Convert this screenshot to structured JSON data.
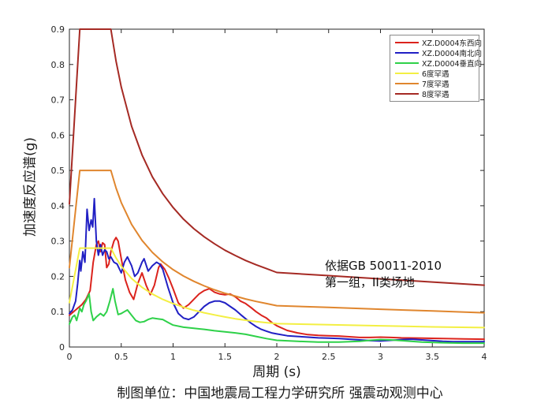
{
  "chart_data": {
    "type": "line",
    "title": "",
    "xlabel": "周期 (s)",
    "ylabel": "加速度反应谱(g)",
    "caption": "制图单位：中国地震局工程力学研究所 强震动观测中心",
    "xlim": [
      0,
      4
    ],
    "ylim": [
      0,
      0.9
    ],
    "xticks": [
      0,
      0.5,
      1,
      1.5,
      2,
      2.5,
      3,
      3.5,
      4
    ],
    "xtick_labels": [
      "0",
      "0.5",
      "1",
      "1.5",
      "2",
      "2.5",
      "3",
      "3.5",
      "4"
    ],
    "yticks": [
      0,
      0.1,
      0.2,
      0.3,
      0.4,
      0.5,
      0.6,
      0.7,
      0.8,
      0.9
    ],
    "ytick_labels": [
      "0",
      "0.1",
      "0.2",
      "0.3",
      "0.4",
      "0.5",
      "0.6",
      "0.7",
      "0.8",
      "0.9"
    ],
    "axis_color": "#262626",
    "grid": false,
    "legend_position": "top-right",
    "annotation": {
      "line1": "依据GB 50011-2010",
      "line2": "第一组，II类场地"
    },
    "series": [
      {
        "id": "ew",
        "name": "XZ.D0004东西向",
        "color": "#db231d",
        "points": [
          [
            0,
            0.09
          ],
          [
            0.04,
            0.1
          ],
          [
            0.08,
            0.11
          ],
          [
            0.12,
            0.12
          ],
          [
            0.16,
            0.135
          ],
          [
            0.2,
            0.16
          ],
          [
            0.23,
            0.24
          ],
          [
            0.26,
            0.29
          ],
          [
            0.28,
            0.3
          ],
          [
            0.3,
            0.27
          ],
          [
            0.32,
            0.295
          ],
          [
            0.34,
            0.29
          ],
          [
            0.36,
            0.225
          ],
          [
            0.38,
            0.235
          ],
          [
            0.4,
            0.27
          ],
          [
            0.43,
            0.3
          ],
          [
            0.45,
            0.31
          ],
          [
            0.47,
            0.3
          ],
          [
            0.5,
            0.25
          ],
          [
            0.54,
            0.19
          ],
          [
            0.58,
            0.155
          ],
          [
            0.62,
            0.135
          ],
          [
            0.66,
            0.18
          ],
          [
            0.7,
            0.21
          ],
          [
            0.74,
            0.175
          ],
          [
            0.78,
            0.148
          ],
          [
            0.82,
            0.175
          ],
          [
            0.86,
            0.225
          ],
          [
            0.88,
            0.235
          ],
          [
            0.92,
            0.22
          ],
          [
            0.96,
            0.195
          ],
          [
            1,
            0.165
          ],
          [
            1.05,
            0.125
          ],
          [
            1.1,
            0.11
          ],
          [
            1.15,
            0.12
          ],
          [
            1.2,
            0.135
          ],
          [
            1.25,
            0.15
          ],
          [
            1.3,
            0.16
          ],
          [
            1.35,
            0.165
          ],
          [
            1.4,
            0.155
          ],
          [
            1.45,
            0.15
          ],
          [
            1.5,
            0.148
          ],
          [
            1.55,
            0.15
          ],
          [
            1.6,
            0.142
          ],
          [
            1.65,
            0.13
          ],
          [
            1.7,
            0.123
          ],
          [
            1.75,
            0.112
          ],
          [
            1.8,
            0.1
          ],
          [
            1.85,
            0.09
          ],
          [
            1.9,
            0.082
          ],
          [
            1.95,
            0.07
          ],
          [
            2,
            0.06
          ],
          [
            2.1,
            0.047
          ],
          [
            2.2,
            0.04
          ],
          [
            2.3,
            0.035
          ],
          [
            2.4,
            0.033
          ],
          [
            2.5,
            0.032
          ],
          [
            2.6,
            0.031
          ],
          [
            2.7,
            0.029
          ],
          [
            2.8,
            0.027
          ],
          [
            2.9,
            0.027
          ],
          [
            3,
            0.028
          ],
          [
            3.1,
            0.027
          ],
          [
            3.2,
            0.026
          ],
          [
            3.4,
            0.025
          ],
          [
            3.6,
            0.024
          ],
          [
            3.8,
            0.023
          ],
          [
            4,
            0.022
          ]
        ]
      },
      {
        "id": "ns",
        "name": "XZ.D0004南北向",
        "color": "#2120c4",
        "points": [
          [
            0,
            0.095
          ],
          [
            0.03,
            0.105
          ],
          [
            0.06,
            0.13
          ],
          [
            0.08,
            0.18
          ],
          [
            0.1,
            0.245
          ],
          [
            0.11,
            0.215
          ],
          [
            0.13,
            0.27
          ],
          [
            0.15,
            0.24
          ],
          [
            0.17,
            0.39
          ],
          [
            0.19,
            0.33
          ],
          [
            0.21,
            0.36
          ],
          [
            0.225,
            0.34
          ],
          [
            0.24,
            0.42
          ],
          [
            0.26,
            0.3
          ],
          [
            0.28,
            0.26
          ],
          [
            0.3,
            0.29
          ],
          [
            0.32,
            0.26
          ],
          [
            0.34,
            0.275
          ],
          [
            0.36,
            0.27
          ],
          [
            0.38,
            0.25
          ],
          [
            0.4,
            0.255
          ],
          [
            0.43,
            0.24
          ],
          [
            0.46,
            0.235
          ],
          [
            0.5,
            0.21
          ],
          [
            0.53,
            0.24
          ],
          [
            0.56,
            0.255
          ],
          [
            0.6,
            0.23
          ],
          [
            0.63,
            0.2
          ],
          [
            0.66,
            0.21
          ],
          [
            0.7,
            0.24
          ],
          [
            0.72,
            0.25
          ],
          [
            0.76,
            0.215
          ],
          [
            0.8,
            0.23
          ],
          [
            0.84,
            0.24
          ],
          [
            0.87,
            0.235
          ],
          [
            0.9,
            0.22
          ],
          [
            0.95,
            0.17
          ],
          [
            1,
            0.125
          ],
          [
            1.05,
            0.095
          ],
          [
            1.1,
            0.082
          ],
          [
            1.15,
            0.078
          ],
          [
            1.2,
            0.085
          ],
          [
            1.25,
            0.1
          ],
          [
            1.3,
            0.115
          ],
          [
            1.35,
            0.125
          ],
          [
            1.4,
            0.13
          ],
          [
            1.45,
            0.13
          ],
          [
            1.5,
            0.125
          ],
          [
            1.55,
            0.115
          ],
          [
            1.6,
            0.105
          ],
          [
            1.65,
            0.092
          ],
          [
            1.7,
            0.08
          ],
          [
            1.75,
            0.068
          ],
          [
            1.8,
            0.058
          ],
          [
            1.85,
            0.05
          ],
          [
            1.9,
            0.045
          ],
          [
            1.95,
            0.04
          ],
          [
            2,
            0.037
          ],
          [
            2.1,
            0.032
          ],
          [
            2.2,
            0.03
          ],
          [
            2.3,
            0.028
          ],
          [
            2.4,
            0.026
          ],
          [
            2.5,
            0.025
          ],
          [
            2.6,
            0.024
          ],
          [
            2.7,
            0.022
          ],
          [
            2.8,
            0.02
          ],
          [
            2.9,
            0.018
          ],
          [
            3,
            0.017
          ],
          [
            3.1,
            0.019
          ],
          [
            3.2,
            0.021
          ],
          [
            3.3,
            0.022
          ],
          [
            3.4,
            0.02
          ],
          [
            3.5,
            0.018
          ],
          [
            3.6,
            0.016
          ],
          [
            3.7,
            0.015
          ],
          [
            3.8,
            0.015
          ],
          [
            3.9,
            0.015
          ],
          [
            4,
            0.015
          ]
        ]
      },
      {
        "id": "ud",
        "name": "XZ.D0004垂直向",
        "color": "#2ed149",
        "points": [
          [
            0,
            0.065
          ],
          [
            0.03,
            0.085
          ],
          [
            0.05,
            0.09
          ],
          [
            0.07,
            0.075
          ],
          [
            0.1,
            0.11
          ],
          [
            0.12,
            0.1
          ],
          [
            0.14,
            0.12
          ],
          [
            0.16,
            0.13
          ],
          [
            0.19,
            0.15
          ],
          [
            0.21,
            0.1
          ],
          [
            0.23,
            0.075
          ],
          [
            0.26,
            0.085
          ],
          [
            0.28,
            0.09
          ],
          [
            0.3,
            0.095
          ],
          [
            0.33,
            0.088
          ],
          [
            0.36,
            0.1
          ],
          [
            0.39,
            0.13
          ],
          [
            0.42,
            0.165
          ],
          [
            0.44,
            0.13
          ],
          [
            0.47,
            0.092
          ],
          [
            0.5,
            0.095
          ],
          [
            0.53,
            0.1
          ],
          [
            0.56,
            0.105
          ],
          [
            0.6,
            0.09
          ],
          [
            0.64,
            0.075
          ],
          [
            0.68,
            0.07
          ],
          [
            0.72,
            0.072
          ],
          [
            0.76,
            0.078
          ],
          [
            0.8,
            0.082
          ],
          [
            0.85,
            0.08
          ],
          [
            0.9,
            0.078
          ],
          [
            0.95,
            0.07
          ],
          [
            1,
            0.062
          ],
          [
            1.1,
            0.056
          ],
          [
            1.2,
            0.053
          ],
          [
            1.3,
            0.05
          ],
          [
            1.4,
            0.046
          ],
          [
            1.5,
            0.043
          ],
          [
            1.6,
            0.04
          ],
          [
            1.7,
            0.036
          ],
          [
            1.8,
            0.03
          ],
          [
            1.9,
            0.024
          ],
          [
            2,
            0.019
          ],
          [
            2.2,
            0.016
          ],
          [
            2.4,
            0.014
          ],
          [
            2.6,
            0.014
          ],
          [
            2.8,
            0.016
          ],
          [
            2.9,
            0.019
          ],
          [
            3,
            0.021
          ],
          [
            3.1,
            0.02
          ],
          [
            3.2,
            0.018
          ],
          [
            3.4,
            0.014
          ],
          [
            3.6,
            0.012
          ],
          [
            3.8,
            0.011
          ],
          [
            4,
            0.011
          ]
        ]
      },
      {
        "id": "rare6",
        "name": "6度罕遇",
        "color": "#f3ef43",
        "points": [
          [
            0,
            0.126
          ],
          [
            0.1,
            0.28
          ],
          [
            0.4,
            0.28
          ],
          [
            0.45,
            0.252
          ],
          [
            0.5,
            0.229
          ],
          [
            0.6,
            0.194
          ],
          [
            0.7,
            0.169
          ],
          [
            0.8,
            0.15
          ],
          [
            0.9,
            0.135
          ],
          [
            1,
            0.123
          ],
          [
            1.1,
            0.113
          ],
          [
            1.2,
            0.104
          ],
          [
            1.3,
            0.097
          ],
          [
            1.4,
            0.091
          ],
          [
            1.5,
            0.085
          ],
          [
            1.6,
            0.08
          ],
          [
            1.7,
            0.076
          ],
          [
            1.8,
            0.072
          ],
          [
            1.9,
            0.069
          ],
          [
            2,
            0.066
          ],
          [
            2.5,
            0.063
          ],
          [
            3,
            0.06
          ],
          [
            3.5,
            0.057
          ],
          [
            4,
            0.055
          ]
        ]
      },
      {
        "id": "rare7",
        "name": "7度罕遇",
        "color": "#e0862e",
        "points": [
          [
            0,
            0.225
          ],
          [
            0.1,
            0.5
          ],
          [
            0.4,
            0.5
          ],
          [
            0.45,
            0.45
          ],
          [
            0.5,
            0.409
          ],
          [
            0.6,
            0.347
          ],
          [
            0.7,
            0.302
          ],
          [
            0.8,
            0.268
          ],
          [
            0.9,
            0.241
          ],
          [
            1,
            0.219
          ],
          [
            1.1,
            0.201
          ],
          [
            1.2,
            0.186
          ],
          [
            1.3,
            0.173
          ],
          [
            1.4,
            0.162
          ],
          [
            1.5,
            0.152
          ],
          [
            1.6,
            0.144
          ],
          [
            1.7,
            0.136
          ],
          [
            1.8,
            0.129
          ],
          [
            1.9,
            0.123
          ],
          [
            2,
            0.117
          ],
          [
            2.5,
            0.112
          ],
          [
            3,
            0.107
          ],
          [
            3.5,
            0.102
          ],
          [
            4,
            0.097
          ]
        ]
      },
      {
        "id": "rare8",
        "name": "8度罕遇",
        "color": "#a52a24",
        "points": [
          [
            0,
            0.405
          ],
          [
            0.1,
            0.9
          ],
          [
            0.4,
            0.9
          ],
          [
            0.45,
            0.809
          ],
          [
            0.5,
            0.736
          ],
          [
            0.6,
            0.625
          ],
          [
            0.7,
            0.544
          ],
          [
            0.8,
            0.482
          ],
          [
            0.9,
            0.434
          ],
          [
            1,
            0.395
          ],
          [
            1.1,
            0.362
          ],
          [
            1.2,
            0.335
          ],
          [
            1.3,
            0.312
          ],
          [
            1.4,
            0.292
          ],
          [
            1.5,
            0.274
          ],
          [
            1.6,
            0.259
          ],
          [
            1.7,
            0.245
          ],
          [
            1.8,
            0.233
          ],
          [
            1.9,
            0.222
          ],
          [
            2,
            0.211
          ],
          [
            2.5,
            0.202
          ],
          [
            3,
            0.193
          ],
          [
            3.5,
            0.184
          ],
          [
            4,
            0.175
          ]
        ]
      }
    ]
  }
}
